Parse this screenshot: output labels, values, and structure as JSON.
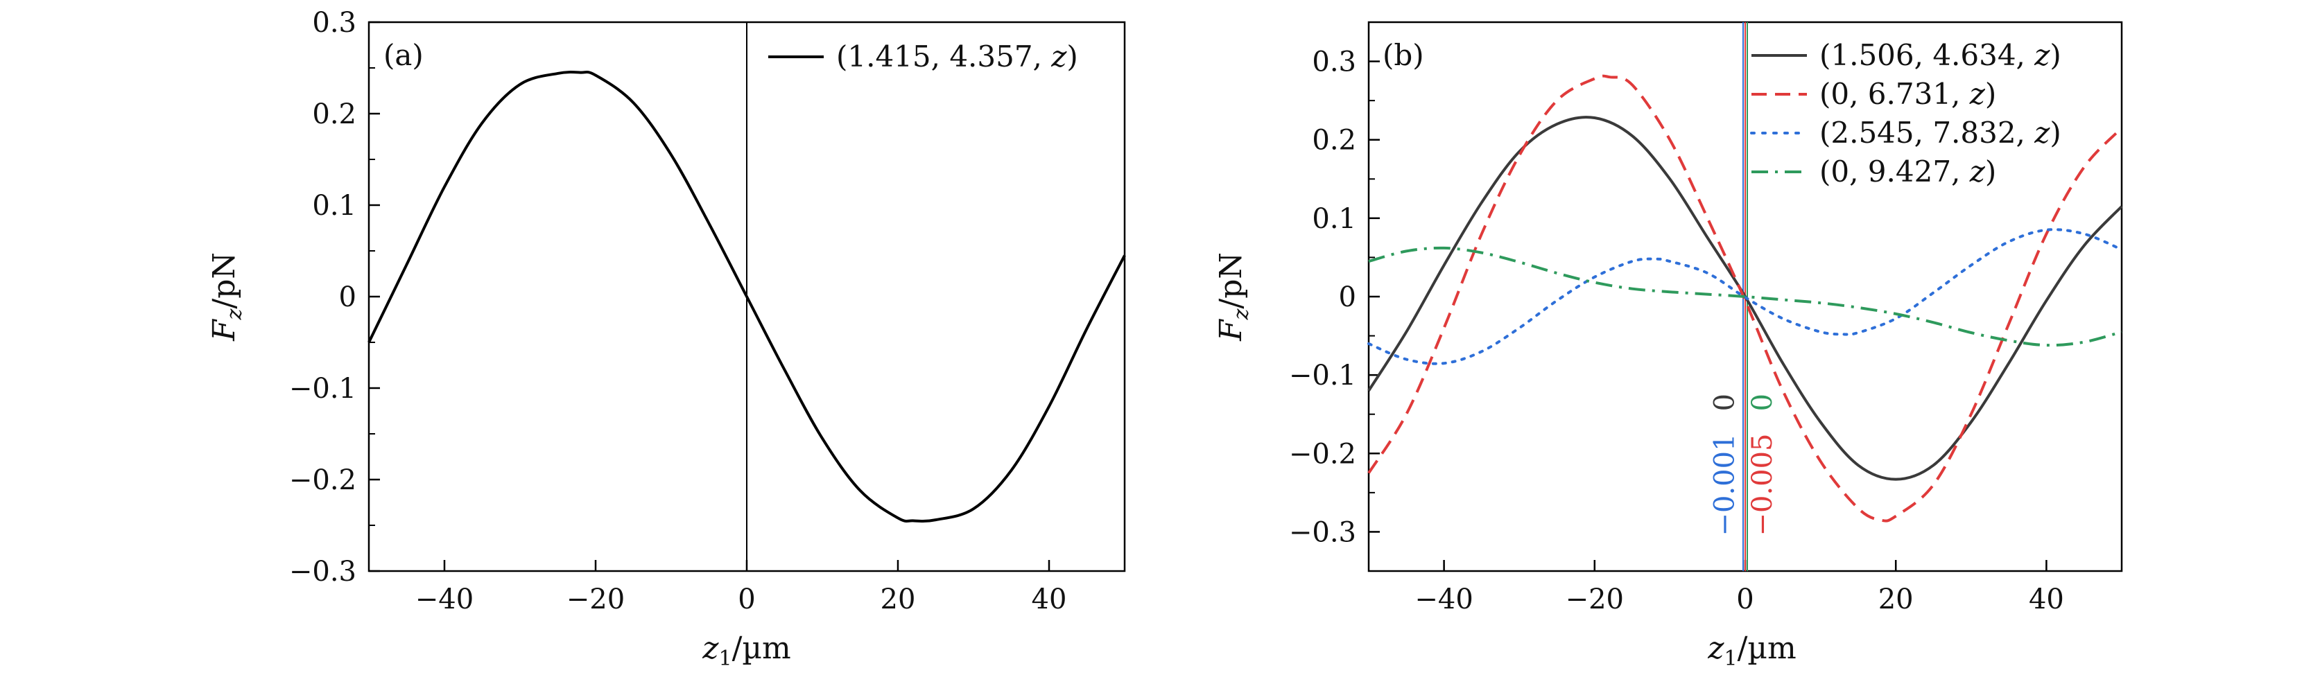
{
  "chart_data": [
    {
      "panel": "a",
      "type": "line",
      "panel_label": "(a)",
      "xlabel_var": "z",
      "xlabel_sub": "1",
      "xlabel_unit": "/µm",
      "ylabel_var": "F",
      "ylabel_sub": "z",
      "ylabel_unit": "/pN",
      "xlim": [
        -50,
        50
      ],
      "ylim": [
        -0.3,
        0.3
      ],
      "xticks": [
        -40,
        -20,
        0,
        20,
        40
      ],
      "xtick_labels": [
        "−40",
        "−20",
        "0",
        "20",
        "40"
      ],
      "yticks": [
        -0.3,
        -0.2,
        -0.1,
        0,
        0.1,
        0.2,
        0.3
      ],
      "ytick_labels": [
        "−0.3",
        "−0.2",
        "−0.1",
        "0",
        "0.1",
        "0.2",
        "0.3"
      ],
      "legend_position": "top-right",
      "vline_x": 0,
      "series": [
        {
          "name": "(1.415, 4.357, z)",
          "legend_prefix": "(1.415, 4.357, ",
          "legend_var": "z",
          "legend_suffix": ")",
          "color": "#000000",
          "dash": "solid",
          "x": [
            -50,
            -45,
            -40,
            -35,
            -30,
            -25,
            -22,
            -20,
            -15,
            -10,
            -5,
            0,
            5,
            10,
            15,
            20,
            22,
            25,
            30,
            35,
            40,
            45,
            50
          ],
          "y": [
            -0.05,
            0.035,
            0.12,
            0.19,
            0.232,
            0.244,
            0.245,
            0.242,
            0.212,
            0.155,
            0.08,
            0.0,
            -0.08,
            -0.155,
            -0.212,
            -0.242,
            -0.245,
            -0.244,
            -0.232,
            -0.19,
            -0.12,
            -0.035,
            0.045
          ]
        }
      ]
    },
    {
      "panel": "b",
      "type": "line",
      "panel_label": "(b)",
      "xlabel_var": "z",
      "xlabel_sub": "1",
      "xlabel_unit": "/µm",
      "ylabel_var": "F",
      "ylabel_sub": "z",
      "ylabel_unit": "/pN",
      "xlim": [
        -50,
        50
      ],
      "ylim": [
        -0.35,
        0.35
      ],
      "xticks": [
        -40,
        -20,
        0,
        20,
        40
      ],
      "xtick_labels": [
        "−40",
        "−20",
        "0",
        "20",
        "40"
      ],
      "yticks": [
        -0.3,
        -0.2,
        -0.1,
        0,
        0.1,
        0.2,
        0.3
      ],
      "ytick_labels": [
        "−0.3",
        "−0.2",
        "−0.1",
        "0",
        "0.1",
        "0.2",
        "0.3"
      ],
      "legend_position": "top-right",
      "vline_x": 0,
      "series": [
        {
          "name": "(1.506, 4.634, z)",
          "legend_prefix": "(1.506, 4.634, ",
          "legend_var": "z",
          "legend_suffix": ")",
          "color": "#3a3a3a",
          "dash": "solid",
          "x": [
            -50,
            -45,
            -40,
            -35,
            -30,
            -25,
            -20,
            -15,
            -10,
            -5,
            0,
            5,
            10,
            15,
            20,
            25,
            30,
            35,
            40,
            45,
            50
          ],
          "y": [
            -0.12,
            -0.045,
            0.04,
            0.12,
            0.185,
            0.22,
            0.228,
            0.205,
            0.15,
            0.075,
            0.0,
            -0.085,
            -0.16,
            -0.215,
            -0.233,
            -0.215,
            -0.16,
            -0.085,
            -0.005,
            0.065,
            0.115
          ]
        },
        {
          "name": "(0, 6.731, z)",
          "legend_prefix": "(0, 6.731, ",
          "legend_var": "z",
          "legend_suffix": ")",
          "color": "#e03a3a",
          "dash": "dashed",
          "x": [
            -50,
            -45,
            -40,
            -35,
            -30,
            -25,
            -20,
            -18,
            -15,
            -10,
            -5,
            0,
            5,
            10,
            15,
            18,
            20,
            25,
            30,
            35,
            40,
            45,
            50
          ],
          "y": [
            -0.225,
            -0.15,
            -0.04,
            0.08,
            0.18,
            0.25,
            0.278,
            0.28,
            0.27,
            0.2,
            0.1,
            -0.005,
            -0.12,
            -0.21,
            -0.27,
            -0.285,
            -0.28,
            -0.24,
            -0.15,
            -0.035,
            0.08,
            0.165,
            0.215
          ]
        },
        {
          "name": "(2.545, 7.832, z)",
          "legend_prefix": "(2.545, 7.832, ",
          "legend_var": "z",
          "legend_suffix": ")",
          "color": "#2e6fd8",
          "dash": "dotted",
          "x": [
            -50,
            -45,
            -40,
            -35,
            -30,
            -25,
            -20,
            -15,
            -12,
            -10,
            -5,
            0,
            5,
            10,
            13,
            15,
            20,
            25,
            30,
            35,
            40,
            45,
            50
          ],
          "y": [
            -0.06,
            -0.08,
            -0.085,
            -0.07,
            -0.04,
            -0.005,
            0.025,
            0.045,
            0.048,
            0.045,
            0.03,
            -0.001,
            -0.028,
            -0.045,
            -0.048,
            -0.046,
            -0.028,
            0.005,
            0.04,
            0.07,
            0.085,
            0.08,
            0.06
          ]
        },
        {
          "name": "(0, 9.427, z)",
          "legend_prefix": "(0, 9.427, ",
          "legend_var": "z",
          "legend_suffix": ")",
          "color": "#2e9a5c",
          "dash": "dashdot",
          "x": [
            -50,
            -45,
            -40,
            -35,
            -30,
            -25,
            -20,
            -15,
            -10,
            -5,
            0,
            5,
            10,
            15,
            20,
            25,
            30,
            35,
            40,
            45,
            50
          ],
          "y": [
            0.045,
            0.058,
            0.062,
            0.056,
            0.044,
            0.03,
            0.018,
            0.01,
            0.006,
            0.003,
            0.0,
            -0.004,
            -0.008,
            -0.014,
            -0.022,
            -0.033,
            -0.046,
            -0.056,
            -0.062,
            -0.058,
            -0.045
          ]
        }
      ],
      "annotations": [
        {
          "text": "0",
          "color": "#3a3a3a",
          "x": -1.5,
          "y": -0.135
        },
        {
          "text": "−0.001",
          "color": "#2e6fd8",
          "x": -1.5,
          "y": -0.24
        },
        {
          "text": "−0.005",
          "color": "#e03a3a",
          "x": 3.5,
          "y": -0.24
        },
        {
          "text": "0",
          "color": "#2e9a5c",
          "x": 3.5,
          "y": -0.135
        }
      ]
    }
  ]
}
